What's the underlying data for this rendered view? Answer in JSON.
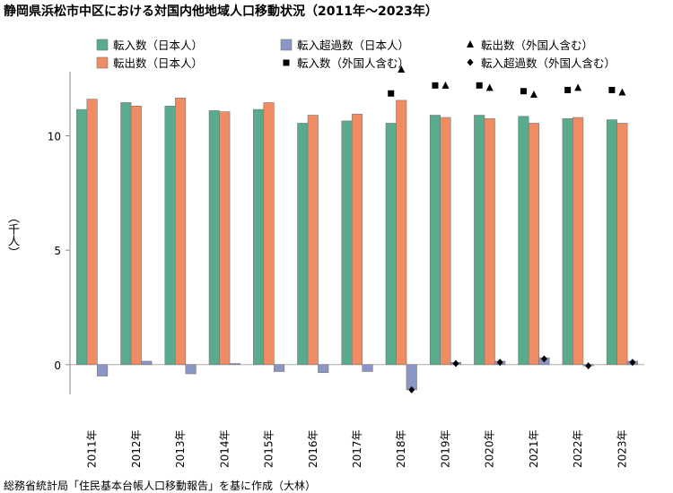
{
  "title": "静岡県浜松市中区における対国内他地域人口移動状況（2011年～2023年）",
  "source": "総務省統計局「住民基本台帳人口移動報告」を基に作成（大林）",
  "chart_data": {
    "type": "bar",
    "ylabel": "（千人）",
    "ylim": [
      -1.3,
      12.8
    ],
    "yticks": [
      0,
      5,
      10
    ],
    "grid": false,
    "legend_position": "top",
    "categories": [
      "2011年",
      "2012年",
      "2013年",
      "2014年",
      "2015年",
      "2016年",
      "2017年",
      "2018年",
      "2019年",
      "2020年",
      "2021年",
      "2022年",
      "2023年"
    ],
    "series": [
      {
        "name": "転入数（日本人）",
        "kind": "bar",
        "color": "#5aab8c",
        "values": [
          11.15,
          11.45,
          11.3,
          11.1,
          11.15,
          10.55,
          10.65,
          10.55,
          10.9,
          10.9,
          10.85,
          10.75,
          10.7
        ]
      },
      {
        "name": "転出数（日本人）",
        "kind": "bar",
        "color": "#f08c64",
        "values": [
          11.6,
          11.3,
          11.65,
          11.05,
          11.45,
          10.9,
          10.95,
          11.55,
          10.8,
          10.75,
          10.55,
          10.8,
          10.55
        ]
      },
      {
        "name": "転入超過数（日本人）",
        "kind": "bar",
        "color": "#8c96c6",
        "values": [
          -0.5,
          0.15,
          -0.4,
          0.05,
          -0.3,
          -0.35,
          -0.3,
          -1.1,
          0.1,
          0.15,
          0.3,
          -0.05,
          0.15
        ]
      },
      {
        "name": "転入数（外国人含む）",
        "kind": "marker",
        "marker": "square",
        "color": "#000000",
        "values": [
          null,
          null,
          null,
          null,
          null,
          null,
          null,
          11.85,
          12.2,
          12.2,
          11.95,
          12.0,
          12.0
        ]
      },
      {
        "name": "転出数（外国人含む）",
        "kind": "marker",
        "marker": "triangle",
        "color": "#000000",
        "values": [
          null,
          null,
          null,
          null,
          null,
          null,
          null,
          12.9,
          12.2,
          12.1,
          11.8,
          12.1,
          11.9
        ]
      },
      {
        "name": "転入超過数（外国人含む）",
        "kind": "marker",
        "marker": "diamond",
        "color": "#000000",
        "values": [
          null,
          null,
          null,
          null,
          null,
          null,
          null,
          -1.1,
          0.05,
          0.1,
          0.25,
          -0.05,
          0.1
        ]
      }
    ]
  }
}
